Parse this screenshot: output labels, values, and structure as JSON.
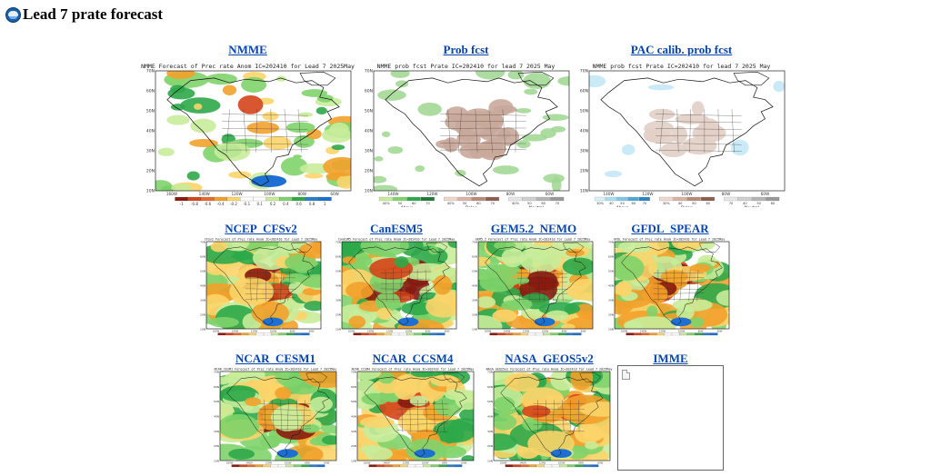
{
  "page": {
    "title": "Lead 7 prate forecast",
    "logo_icon": "noaa-logo-icon"
  },
  "panels": [
    {
      "id": "nmme",
      "link": "NMME",
      "kind": "anom",
      "caption": "NMME Forecast of Prec rate Anom IC=202410 for Lead 7 2025May",
      "legend": [
        "-1",
        "-0.8",
        "-0.6",
        "-0.4",
        "-0.2",
        "-0.1",
        "0.1",
        "0.2",
        "0.4",
        "0.6",
        "0.8",
        "1"
      ]
    },
    {
      "id": "prob",
      "link": "Prob fcst",
      "kind": "prob",
      "caption": "NMME prob fcst Prate IC=202410 for lead 7 2025 May",
      "legend_groups": [
        "Above",
        "Below",
        "Neutral"
      ],
      "legend": [
        "40%",
        "50",
        "60",
        "70",
        "40%",
        "50",
        "60",
        "70",
        "40%",
        "50",
        "60",
        "70"
      ]
    },
    {
      "id": "pac",
      "link": "PAC calib. prob fcst",
      "kind": "pac",
      "caption": "NMME prob fcst Prate IC=202410 for lead 7 2025 May",
      "legend_groups": [
        "Above",
        "Below",
        "Neutral"
      ],
      "legend": [
        "30%",
        "40",
        "50",
        "60",
        "70",
        "30%",
        "40",
        "50",
        "60",
        "70",
        "40",
        "50",
        "60",
        "70"
      ]
    },
    {
      "id": "cfsv2",
      "link": "NCEP_CFSv2",
      "kind": "model",
      "caption": "CFSv2 Forecast of Prec rate Anom IC=202410 for Lead 7 2025May"
    },
    {
      "id": "canesm5",
      "link": "CanESM5",
      "kind": "model",
      "caption": "CanESM5 Forecast of Prec rate Anom IC=202410 for Lead 7 2025May"
    },
    {
      "id": "gem52",
      "link": "GEM5.2_NEMO",
      "kind": "model",
      "caption": "GEM5.2 Forecast of Prec rate Anom IC=202410 for Lead 7 2025May"
    },
    {
      "id": "gfdl",
      "link": "GFDL_SPEAR",
      "kind": "model",
      "caption": "GFDL Forecast of Prec rate Anom IC=202410 for Lead 7 2025May"
    },
    {
      "id": "cesm1",
      "link": "NCAR_CESM1",
      "kind": "model",
      "caption": "NCAR_CESM1 Forecast of Prec rate Anom IC=202410 for Lead 7 2025May"
    },
    {
      "id": "ccsm4",
      "link": "NCAR_CCSM4",
      "kind": "model",
      "caption": "NCAR_CCSM4 Forecast of Prec rate Anom IC=202410 for Lead 7 2025May"
    },
    {
      "id": "geos5",
      "link": "NASA_GEOS5v2",
      "kind": "model",
      "caption": "NASA GEOS5v2 Forecast of Prec rate Anom IC=202410 for Lead 7 2025May"
    },
    {
      "id": "imme",
      "link": "IMME",
      "kind": "broken",
      "caption": ""
    }
  ],
  "map_axes": {
    "lat_labels": [
      "70N",
      "60N",
      "50N",
      "40N",
      "30N",
      "20N",
      "10N"
    ],
    "lon_labels_top": [
      "160W",
      "140W",
      "120W",
      "100W",
      "80W",
      "60W"
    ],
    "lon_labels_prob": [
      "140W",
      "120W",
      "100W",
      "80W",
      "60W"
    ]
  },
  "colors": {
    "link": "#0645ad",
    "dry_strong": "#8b1a0e",
    "dry_mid": "#d4451a",
    "dry_light": "#f2a12b",
    "dry_faint": "#fbd46a",
    "wet_faint": "#c8ec9a",
    "wet_light": "#7fd36b",
    "wet_mid": "#2fa84a",
    "wet_strong": "#1d6fd1",
    "prob_below": "#c9a99a",
    "prob_above": "#9ed68f",
    "prob_neutral": "#d8d8d8"
  }
}
